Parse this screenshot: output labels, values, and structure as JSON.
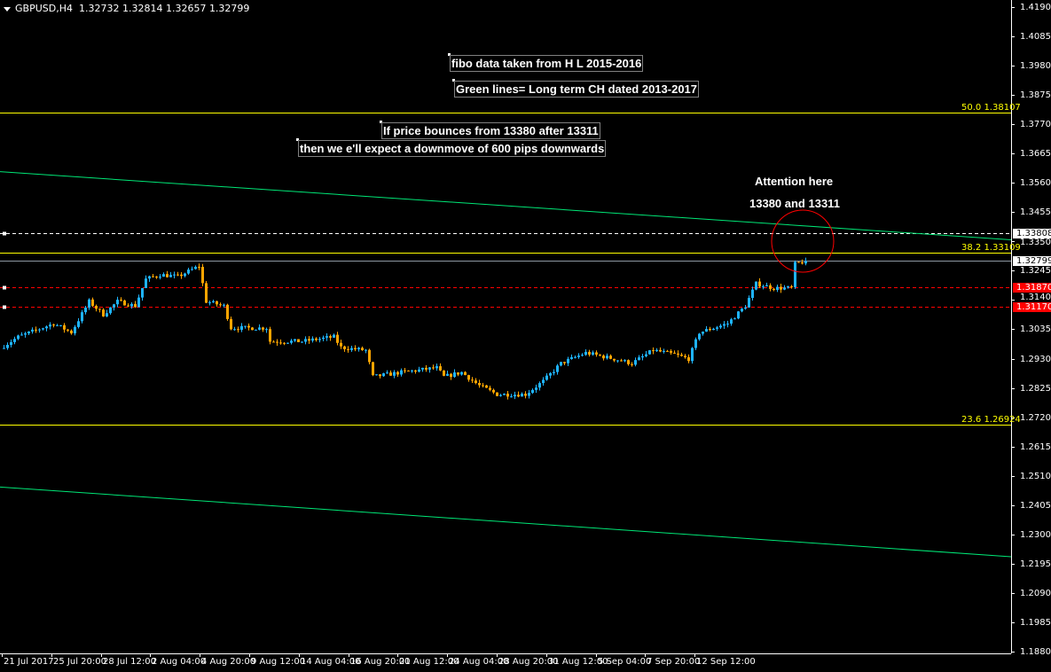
{
  "header": {
    "symbol": "GBPUSD,H4",
    "ohlc": "1.32732 1.32814 1.32657 1.32799"
  },
  "notes": [
    "fibo  data taken from H L 2015-2016",
    "Green lines= Long term CH dated 2013-2017",
    "If price bounces from 13380 after 13311",
    "then we e'll expect a downmove of 600 pips downwards"
  ],
  "attention": {
    "line1": "Attention here",
    "line2": "13380 and 13311"
  },
  "colors": {
    "background": "#000000",
    "bull": "#1eb4ff",
    "bear": "#ffa500",
    "fibo": "#ffff00",
    "channel": "#00e676",
    "circle": "#ff0000",
    "level_red": "#ff0000",
    "bid": "#8c96a0"
  },
  "chart_data": {
    "type": "candlestick",
    "timeframe": "H4",
    "y_ticks": [
      "1.41900",
      "1.40850",
      "1.39800",
      "1.38750",
      "1.37700",
      "1.36650",
      "1.35600",
      "1.34550",
      "1.33500",
      "1.32450",
      "1.31400",
      "1.30350",
      "1.29300",
      "1.28250",
      "1.27200",
      "1.26150",
      "1.25100",
      "1.24050",
      "1.23000",
      "1.21950",
      "1.20900",
      "1.19850",
      "1.18800"
    ],
    "ylim": [
      1.188,
      1.419
    ],
    "x_ticks": [
      "21 Jul 2017",
      "25 Jul 20:00",
      "28 Jul 12:00",
      "2 Aug 04:00",
      "4 Aug 20:00",
      "9 Aug 12:00",
      "14 Aug 04:00",
      "16 Aug 20:00",
      "21 Aug 12:00",
      "24 Aug 04:00",
      "28 Aug 20:00",
      "31 Aug 12:00",
      "5 Sep 04:00",
      "7 Sep 20:00",
      "12 Sep 12:00"
    ],
    "close_path": [
      [
        0,
        1.2976
      ],
      [
        4,
        1.3008
      ],
      [
        14,
        1.3056
      ],
      [
        19,
        1.3024
      ],
      [
        24,
        1.3135
      ],
      [
        28,
        1.3088
      ],
      [
        32,
        1.3135
      ],
      [
        37,
        1.3119
      ],
      [
        40,
        1.3215
      ],
      [
        44,
        1.3231
      ],
      [
        49,
        1.3224
      ],
      [
        55,
        1.3262
      ],
      [
        57,
        1.3135
      ],
      [
        62,
        1.3119
      ],
      [
        64,
        1.304
      ],
      [
        74,
        1.304
      ],
      [
        75,
        1.2992
      ],
      [
        84,
        1.2992
      ],
      [
        93,
        1.3008
      ],
      [
        95,
        1.297
      ],
      [
        102,
        1.296
      ],
      [
        104,
        1.2865
      ],
      [
        112,
        1.2881
      ],
      [
        122,
        1.2897
      ],
      [
        124,
        1.2865
      ],
      [
        129,
        1.2881
      ],
      [
        134,
        1.2833
      ],
      [
        139,
        1.2802
      ],
      [
        147,
        1.2802
      ],
      [
        152,
        1.2849
      ],
      [
        157,
        1.2913
      ],
      [
        164,
        1.2951
      ],
      [
        172,
        1.2929
      ],
      [
        177,
        1.2913
      ],
      [
        183,
        1.296
      ],
      [
        189,
        1.2945
      ],
      [
        193,
        1.2929
      ],
      [
        196,
        1.3024
      ],
      [
        204,
        1.3056
      ],
      [
        209,
        1.3119
      ],
      [
        212,
        1.3199
      ],
      [
        217,
        1.3183
      ],
      [
        222,
        1.3183
      ],
      [
        223,
        1.3269
      ],
      [
        226,
        1.32799
      ]
    ],
    "fibo_levels": [
      {
        "level": "50.0",
        "price": "1.38107"
      },
      {
        "level": "38.2",
        "price": "1.33109"
      },
      {
        "level": "23.6",
        "price": "1.26924"
      }
    ],
    "channel_lines": [
      {
        "start": 1.36,
        "end": 1.3356
      },
      {
        "start": 1.247,
        "end": 1.222
      }
    ],
    "horizontal_levels": [
      {
        "price": "1.33808",
        "style": "dashed",
        "color": "#ffffff",
        "tag_bg": "#ffffff",
        "tag_fg": "#000000"
      },
      {
        "price": "1.32799",
        "style": "solid",
        "color": "#8c96a0",
        "tag_bg": "#ffffff",
        "tag_fg": "#000000"
      },
      {
        "price": "1.31870",
        "style": "dashed",
        "color": "#ff0000",
        "tag_bg": "#ff0000",
        "tag_fg": "#ffffff"
      },
      {
        "price": "1.31170",
        "style": "dashed",
        "color": "#ff0000",
        "tag_bg": "#ff0000",
        "tag_fg": "#ffffff"
      }
    ]
  }
}
